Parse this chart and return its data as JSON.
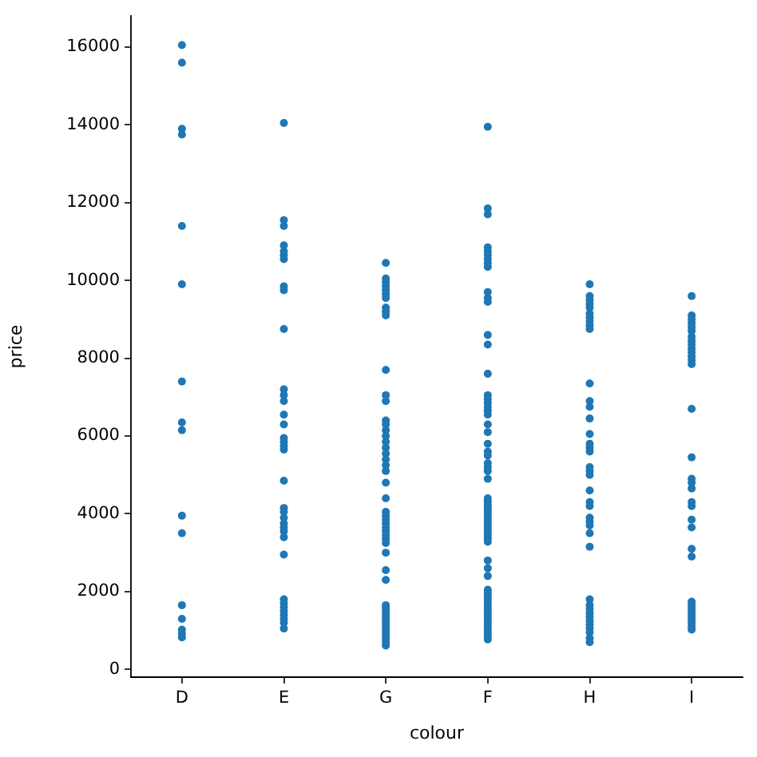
{
  "chart_data": {
    "type": "scatter",
    "xlabel": "colour",
    "ylabel": "price",
    "categories": [
      "D",
      "E",
      "G",
      "F",
      "H",
      "I"
    ],
    "ylim": [
      -200,
      16800
    ],
    "yticks": [
      0,
      2000,
      4000,
      6000,
      8000,
      10000,
      12000,
      14000,
      16000
    ],
    "marker": "circle",
    "series": [
      {
        "color": "#1f77b4",
        "x": [
          "D",
          "D",
          "D",
          "D",
          "D",
          "D",
          "D",
          "D",
          "D",
          "D",
          "D",
          "D",
          "D",
          "D",
          "D",
          "D",
          "E",
          "E",
          "E",
          "E",
          "E",
          "E",
          "E",
          "E",
          "E",
          "E",
          "E",
          "E",
          "E",
          "E",
          "E",
          "E",
          "E",
          "E",
          "E",
          "E",
          "E",
          "E",
          "E",
          "E",
          "E",
          "E",
          "E",
          "E",
          "E",
          "E",
          "E",
          "E",
          "E",
          "E",
          "E",
          "E",
          "G",
          "G",
          "G",
          "G",
          "G",
          "G",
          "G",
          "G",
          "G",
          "G",
          "G",
          "G",
          "G",
          "G",
          "G",
          "G",
          "G",
          "G",
          "G",
          "G",
          "G",
          "G",
          "G",
          "G",
          "G",
          "G",
          "G",
          "G",
          "G",
          "G",
          "G",
          "G",
          "G",
          "G",
          "G",
          "G",
          "G",
          "G",
          "G",
          "G",
          "G",
          "G",
          "G",
          "G",
          "G",
          "G",
          "G",
          "G",
          "G",
          "G",
          "G",
          "F",
          "F",
          "F",
          "F",
          "F",
          "F",
          "F",
          "F",
          "F",
          "F",
          "F",
          "F",
          "F",
          "F",
          "F",
          "F",
          "F",
          "F",
          "F",
          "F",
          "F",
          "F",
          "F",
          "F",
          "F",
          "F",
          "F",
          "F",
          "F",
          "F",
          "F",
          "F",
          "F",
          "F",
          "F",
          "F",
          "F",
          "F",
          "F",
          "F",
          "F",
          "F",
          "F",
          "F",
          "F",
          "F",
          "F",
          "F",
          "F",
          "F",
          "F",
          "F",
          "F",
          "F",
          "F",
          "F",
          "F",
          "F",
          "F",
          "F",
          "F",
          "F",
          "F",
          "F",
          "F",
          "H",
          "H",
          "H",
          "H",
          "H",
          "H",
          "H",
          "H",
          "H",
          "H",
          "H",
          "H",
          "H",
          "H",
          "H",
          "H",
          "H",
          "H",
          "H",
          "H",
          "H",
          "H",
          "H",
          "H",
          "H",
          "H",
          "H",
          "H",
          "H",
          "H",
          "H",
          "H",
          "H",
          "H",
          "H",
          "H",
          "H",
          "H",
          "H",
          "H",
          "I",
          "I",
          "I",
          "I",
          "I",
          "I",
          "I",
          "I",
          "I",
          "I",
          "I",
          "I",
          "I",
          "I",
          "I",
          "I",
          "I",
          "I",
          "I",
          "I",
          "I",
          "I",
          "I",
          "I",
          "I",
          "I",
          "I",
          "I",
          "I",
          "I",
          "I",
          "I",
          "I",
          "I",
          "I"
        ],
        "values": [
          16050,
          15600,
          13900,
          13750,
          11400,
          9900,
          7400,
          6350,
          6150,
          3950,
          3500,
          1650,
          1300,
          1020,
          920,
          820,
          14050,
          11550,
          11400,
          10900,
          10750,
          10650,
          10550,
          9850,
          9750,
          8750,
          7200,
          7050,
          6900,
          6550,
          6300,
          5950,
          5850,
          5750,
          5650,
          4850,
          4150,
          4050,
          3900,
          3750,
          3650,
          3550,
          3400,
          2950,
          1800,
          1700,
          1600,
          1500,
          1400,
          1300,
          1200,
          1050,
          10450,
          10050,
          9950,
          9850,
          9750,
          9650,
          9550,
          9300,
          9200,
          9100,
          7700,
          7050,
          6900,
          6400,
          6300,
          6150,
          6000,
          5850,
          5700,
          5550,
          5400,
          5250,
          5100,
          4800,
          4400,
          4050,
          3950,
          3850,
          3750,
          3650,
          3550,
          3450,
          3350,
          3250,
          3000,
          2550,
          2300,
          1650,
          1570,
          1490,
          1410,
          1330,
          1250,
          1170,
          1090,
          1010,
          930,
          850,
          770,
          690,
          610,
          13950,
          11850,
          11700,
          10850,
          10750,
          10650,
          10550,
          10450,
          10350,
          9700,
          9550,
          9450,
          8600,
          8350,
          7600,
          7050,
          6950,
          6850,
          6750,
          6650,
          6550,
          6300,
          6100,
          5800,
          5600,
          5500,
          5300,
          5200,
          5100,
          4900,
          4400,
          4320,
          4240,
          4160,
          4080,
          4000,
          3920,
          3840,
          3760,
          3680,
          3600,
          3520,
          3440,
          3360,
          3280,
          2800,
          2600,
          2400,
          2050,
          1970,
          1890,
          1810,
          1730,
          1650,
          1570,
          1490,
          1410,
          1330,
          1250,
          1170,
          1090,
          1010,
          930,
          850,
          770,
          9900,
          9600,
          9500,
          9400,
          9300,
          9150,
          9050,
          8950,
          8850,
          8750,
          7350,
          6900,
          6750,
          6450,
          6050,
          5800,
          5700,
          5600,
          5200,
          5100,
          5000,
          4600,
          4300,
          4200,
          3900,
          3800,
          3700,
          3500,
          3150,
          1800,
          1650,
          1550,
          1450,
          1350,
          1250,
          1150,
          1050,
          950,
          800,
          700,
          9600,
          9100,
          9000,
          8900,
          8800,
          8700,
          8550,
          8450,
          8350,
          8250,
          8150,
          8050,
          7950,
          7850,
          6700,
          5450,
          4900,
          4800,
          4650,
          4300,
          4200,
          3850,
          3650,
          3100,
          2900,
          1740,
          1660,
          1580,
          1500,
          1420,
          1340,
          1260,
          1180,
          1100,
          1020
        ]
      }
    ]
  }
}
